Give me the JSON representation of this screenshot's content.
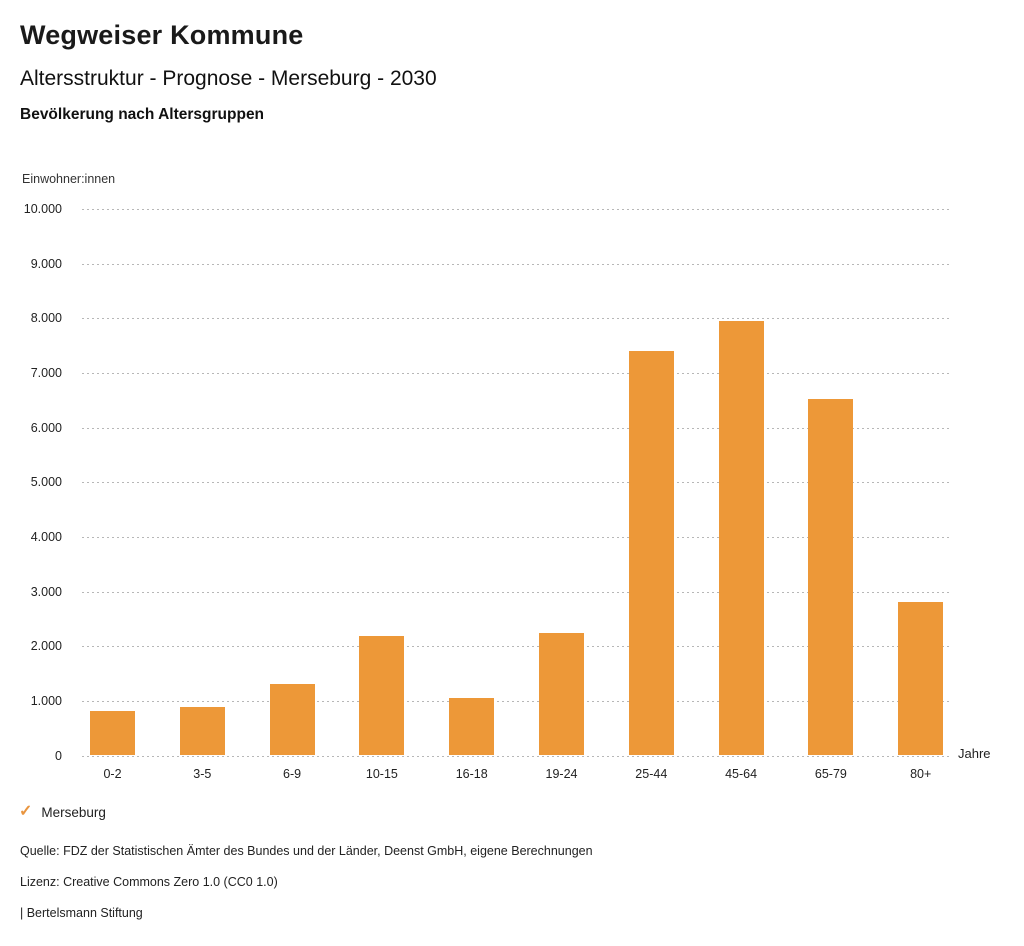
{
  "header": {
    "title": "Wegweiser Kommune",
    "subtitle": "Altersstruktur - Prognose - Merseburg - 2030",
    "section_title": "Bevölkerung nach Altersgruppen"
  },
  "chart_data": {
    "type": "bar",
    "title": "Bevölkerung nach Altersgruppen",
    "series_name": "Merseburg",
    "categories": [
      "0-2",
      "3-5",
      "6-9",
      "10-15",
      "16-18",
      "19-24",
      "25-44",
      "45-64",
      "65-79",
      "80+"
    ],
    "values": [
      820,
      890,
      1300,
      2190,
      1060,
      2240,
      7400,
      7950,
      6530,
      2810
    ],
    "xlabel": "Jahre",
    "ylabel": "Einwohner:innen",
    "ylim": [
      0,
      10000
    ],
    "y_tick_step": 1000,
    "y_tick_labels": [
      "0",
      "1.000",
      "2.000",
      "3.000",
      "4.000",
      "5.000",
      "6.000",
      "7.000",
      "8.000",
      "9.000",
      "10.000"
    ],
    "grid": "horizontal-dotted",
    "legend_position": "bottom-left",
    "bar_color": "#ED9838"
  },
  "legend": {
    "label": "Merseburg",
    "check_icon": "✓",
    "check_color": "#E9953F"
  },
  "footer": {
    "source": "Quelle: FDZ der Statistischen Ämter des Bundes und der Länder, Deenst GmbH, eigene Berechnungen",
    "license": "Lizenz: Creative Commons Zero 1.0 (CC0 1.0)",
    "attribution": "| Bertelsmann Stiftung"
  }
}
